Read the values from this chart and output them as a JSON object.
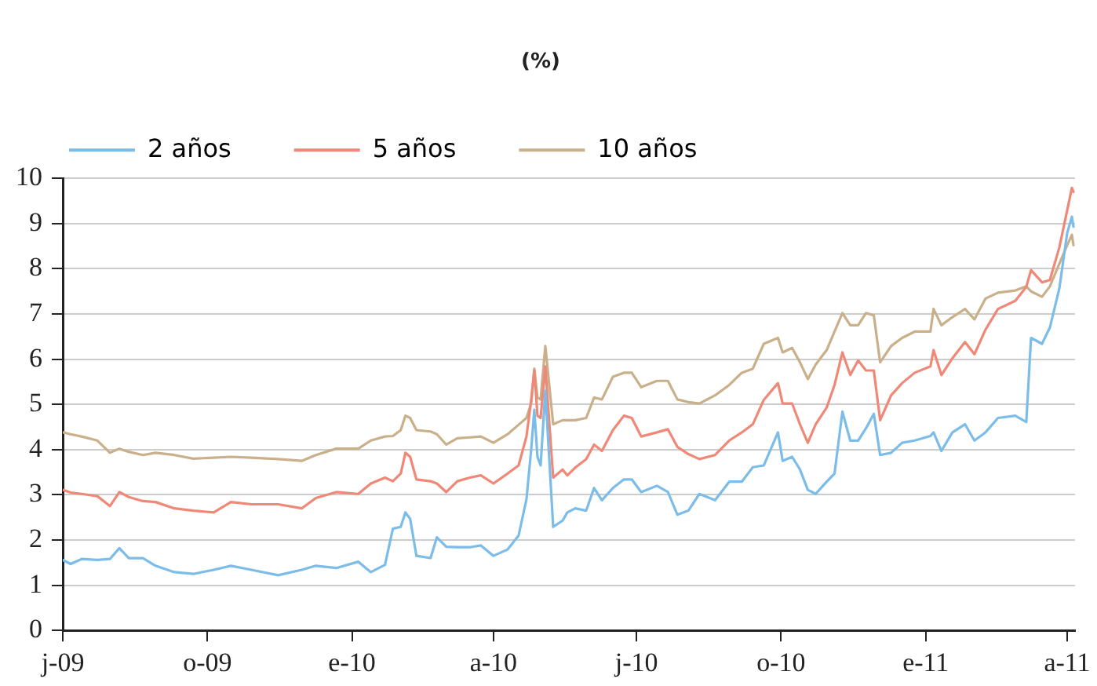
{
  "chart_data": {
    "type": "line",
    "subtitle": "(%)",
    "x": [
      "2009-07-01",
      "2009-07-06",
      "2009-07-13",
      "2009-07-23",
      "2009-07-31",
      "2009-08-06",
      "2009-08-12",
      "2009-08-21",
      "2009-08-29",
      "2009-09-10",
      "2009-09-22",
      "2009-10-05",
      "2009-10-16",
      "2009-10-29",
      "2009-11-15",
      "2009-11-30",
      "2009-12-09",
      "2009-12-22",
      "2010-01-05",
      "2010-01-13",
      "2010-01-22",
      "2010-01-27",
      "2010-02-01",
      "2010-02-04",
      "2010-02-07",
      "2010-02-11",
      "2010-02-20",
      "2010-02-24",
      "2010-03-02",
      "2010-03-09",
      "2010-03-17",
      "2010-03-24",
      "2010-04-01",
      "2010-04-10",
      "2010-04-17",
      "2010-04-22",
      "2010-04-25",
      "2010-04-27",
      "2010-04-29",
      "2010-05-01",
      "2010-05-04",
      "2010-05-09",
      "2010-05-15",
      "2010-05-18",
      "2010-05-23",
      "2010-05-30",
      "2010-06-04",
      "2010-06-09",
      "2010-06-16",
      "2010-06-23",
      "2010-06-28",
      "2010-07-04",
      "2010-07-14",
      "2010-07-21",
      "2010-07-27",
      "2010-08-03",
      "2010-08-10",
      "2010-08-20",
      "2010-08-29",
      "2010-09-06",
      "2010-09-13",
      "2010-09-20",
      "2010-09-29",
      "2010-10-02",
      "2010-10-08",
      "2010-10-13",
      "2010-10-18",
      "2010-10-23",
      "2010-10-30",
      "2010-11-04",
      "2010-11-09",
      "2010-11-14",
      "2010-11-19",
      "2010-11-24",
      "2010-11-29",
      "2010-12-03",
      "2010-12-10",
      "2010-12-17",
      "2010-12-25",
      "2011-01-04",
      "2011-01-06",
      "2011-01-11",
      "2011-01-18",
      "2011-01-26",
      "2011-02-01",
      "2011-02-08",
      "2011-02-16",
      "2011-02-27",
      "2011-03-06",
      "2011-03-09",
      "2011-03-16",
      "2011-03-21",
      "2011-03-27",
      "2011-04-01",
      "2011-04-04",
      "2011-04-05"
    ],
    "series": [
      {
        "name": "2 años",
        "color": "#7bbde8",
        "values": [
          1.56,
          1.47,
          1.58,
          1.56,
          1.58,
          1.82,
          1.6,
          1.6,
          1.43,
          1.29,
          1.25,
          1.34,
          1.43,
          1.34,
          1.22,
          1.34,
          1.43,
          1.38,
          1.52,
          1.29,
          1.45,
          2.25,
          2.29,
          2.61,
          2.47,
          1.65,
          1.6,
          2.06,
          1.85,
          1.84,
          1.84,
          1.88,
          1.65,
          1.79,
          2.1,
          2.9,
          4.0,
          4.88,
          3.84,
          3.65,
          5.3,
          2.29,
          2.43,
          2.61,
          2.7,
          2.65,
          3.15,
          2.88,
          3.15,
          3.34,
          3.34,
          3.06,
          3.2,
          3.06,
          2.56,
          2.65,
          3.02,
          2.88,
          3.29,
          3.29,
          3.61,
          3.65,
          4.38,
          3.75,
          3.84,
          3.56,
          3.11,
          3.02,
          3.29,
          3.47,
          4.84,
          4.2,
          4.2,
          4.47,
          4.79,
          3.88,
          3.93,
          4.15,
          4.2,
          4.3,
          4.38,
          3.97,
          4.38,
          4.56,
          4.2,
          4.38,
          4.7,
          4.75,
          4.61,
          6.47,
          6.34,
          6.7,
          7.56,
          8.79,
          9.15,
          8.93
        ]
      },
      {
        "name": "5 años",
        "color": "#f08878",
        "values": [
          3.11,
          3.05,
          3.02,
          2.97,
          2.75,
          3.06,
          2.95,
          2.86,
          2.84,
          2.7,
          2.65,
          2.61,
          2.84,
          2.79,
          2.79,
          2.7,
          2.93,
          3.06,
          3.02,
          3.25,
          3.38,
          3.3,
          3.47,
          3.93,
          3.84,
          3.34,
          3.3,
          3.25,
          3.06,
          3.3,
          3.38,
          3.43,
          3.25,
          3.47,
          3.65,
          4.29,
          5.1,
          5.75,
          4.75,
          4.7,
          5.84,
          3.38,
          3.56,
          3.43,
          3.6,
          3.79,
          4.11,
          3.97,
          4.43,
          4.75,
          4.7,
          4.29,
          4.38,
          4.45,
          4.06,
          3.9,
          3.79,
          3.88,
          4.2,
          4.38,
          4.56,
          5.1,
          5.47,
          5.02,
          5.02,
          4.56,
          4.15,
          4.56,
          4.93,
          5.43,
          6.15,
          5.65,
          5.97,
          5.75,
          5.75,
          4.65,
          5.2,
          5.47,
          5.7,
          5.84,
          6.2,
          5.65,
          6.02,
          6.38,
          6.11,
          6.65,
          7.11,
          7.29,
          7.6,
          7.97,
          7.7,
          7.75,
          8.47,
          9.29,
          9.79,
          9.7
        ]
      },
      {
        "name": "10 años",
        "color": "#c9b08a",
        "values": [
          4.38,
          4.34,
          4.29,
          4.2,
          3.93,
          4.02,
          3.95,
          3.88,
          3.93,
          3.88,
          3.8,
          3.82,
          3.84,
          3.82,
          3.79,
          3.75,
          3.88,
          4.02,
          4.02,
          4.2,
          4.29,
          4.3,
          4.43,
          4.75,
          4.7,
          4.43,
          4.4,
          4.34,
          4.11,
          4.25,
          4.27,
          4.29,
          4.15,
          4.34,
          4.55,
          4.7,
          5.02,
          5.79,
          5.15,
          5.11,
          6.29,
          4.56,
          4.65,
          4.65,
          4.65,
          4.7,
          5.15,
          5.11,
          5.61,
          5.7,
          5.7,
          5.38,
          5.52,
          5.52,
          5.11,
          5.05,
          5.02,
          5.2,
          5.43,
          5.7,
          5.79,
          6.34,
          6.47,
          6.15,
          6.25,
          5.93,
          5.56,
          5.88,
          6.2,
          6.61,
          7.02,
          6.75,
          6.75,
          7.02,
          6.97,
          5.93,
          6.29,
          6.47,
          6.61,
          6.61,
          7.11,
          6.75,
          6.93,
          7.11,
          6.88,
          7.34,
          7.47,
          7.52,
          7.61,
          7.5,
          7.38,
          7.61,
          8.11,
          8.52,
          8.75,
          8.52
        ]
      }
    ],
    "xlim": [
      "2009-07-01",
      "2011-04-06"
    ],
    "xticks": [
      {
        "value": "2009-07-01",
        "label": "j-09"
      },
      {
        "value": "2009-10-01",
        "label": "o-09"
      },
      {
        "value": "2010-01-01",
        "label": "e-10"
      },
      {
        "value": "2010-04-01",
        "label": "a-10"
      },
      {
        "value": "2010-07-01",
        "label": "j-10"
      },
      {
        "value": "2010-10-01",
        "label": "o-10"
      },
      {
        "value": "2011-01-01",
        "label": "e-11"
      },
      {
        "value": "2011-04-01",
        "label": "a-11"
      }
    ],
    "ylim": [
      0,
      10
    ],
    "yticks": [
      0,
      1,
      2,
      3,
      4,
      5,
      6,
      7,
      8,
      9,
      10
    ],
    "grid": "y",
    "legend": "top left",
    "marker": "none",
    "line_style": "solid"
  }
}
